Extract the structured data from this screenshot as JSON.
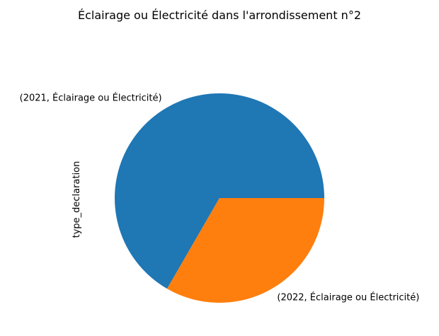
{
  "chart_data": {
    "type": "pie",
    "title": "Éclairage ou Électricité dans l'arrondissement n°2",
    "ylabel": "type_declaration",
    "categories": [
      "(2021, Éclairage ou Électricité)",
      "(2022, Éclairage ou Électricité)"
    ],
    "values": [
      2,
      1
    ],
    "colors": [
      "#1f77b4",
      "#ff7f0e"
    ],
    "start_angle_deg": 0,
    "direction": "counterclockwise",
    "legend": "none"
  }
}
